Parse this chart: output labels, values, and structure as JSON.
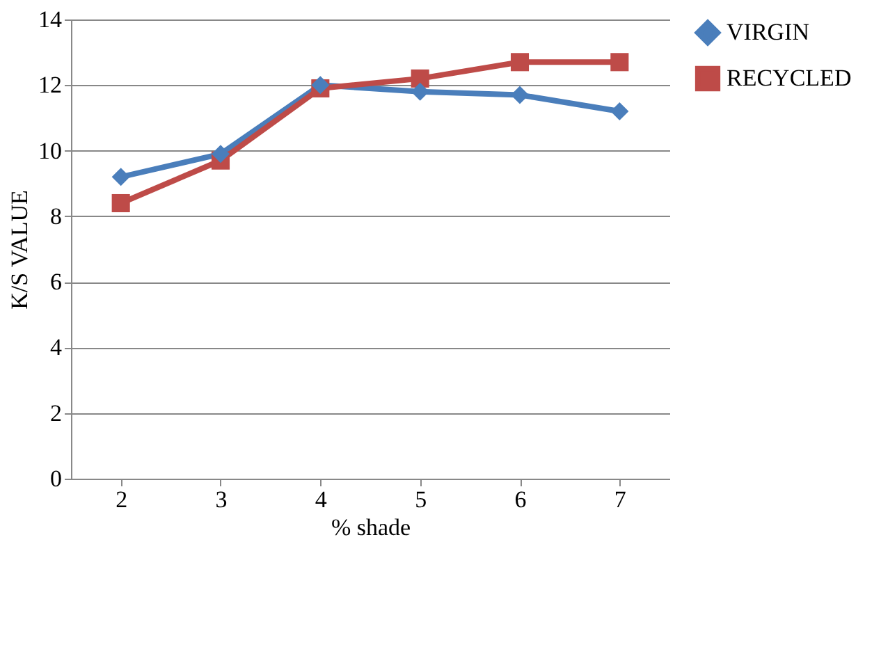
{
  "chart_data": {
    "type": "line",
    "xlabel": "% shade",
    "ylabel": "K/S VALUE",
    "categories": [
      "2",
      "3",
      "4",
      "5",
      "6",
      "7"
    ],
    "series": [
      {
        "name": "VIRGIN",
        "color": "#4a7ebb",
        "marker": "diamond",
        "values": [
          9.2,
          9.9,
          12.0,
          11.8,
          11.7,
          11.2
        ]
      },
      {
        "name": "RECYCLED",
        "color": "#be4b48",
        "marker": "square",
        "values": [
          8.4,
          9.7,
          11.9,
          12.2,
          12.7,
          12.7
        ]
      }
    ],
    "ylim": [
      0,
      14
    ],
    "yticks": [
      0,
      2,
      4,
      6,
      8,
      10,
      12,
      14
    ],
    "grid": "y",
    "legend": "right",
    "line_style": "solid"
  }
}
